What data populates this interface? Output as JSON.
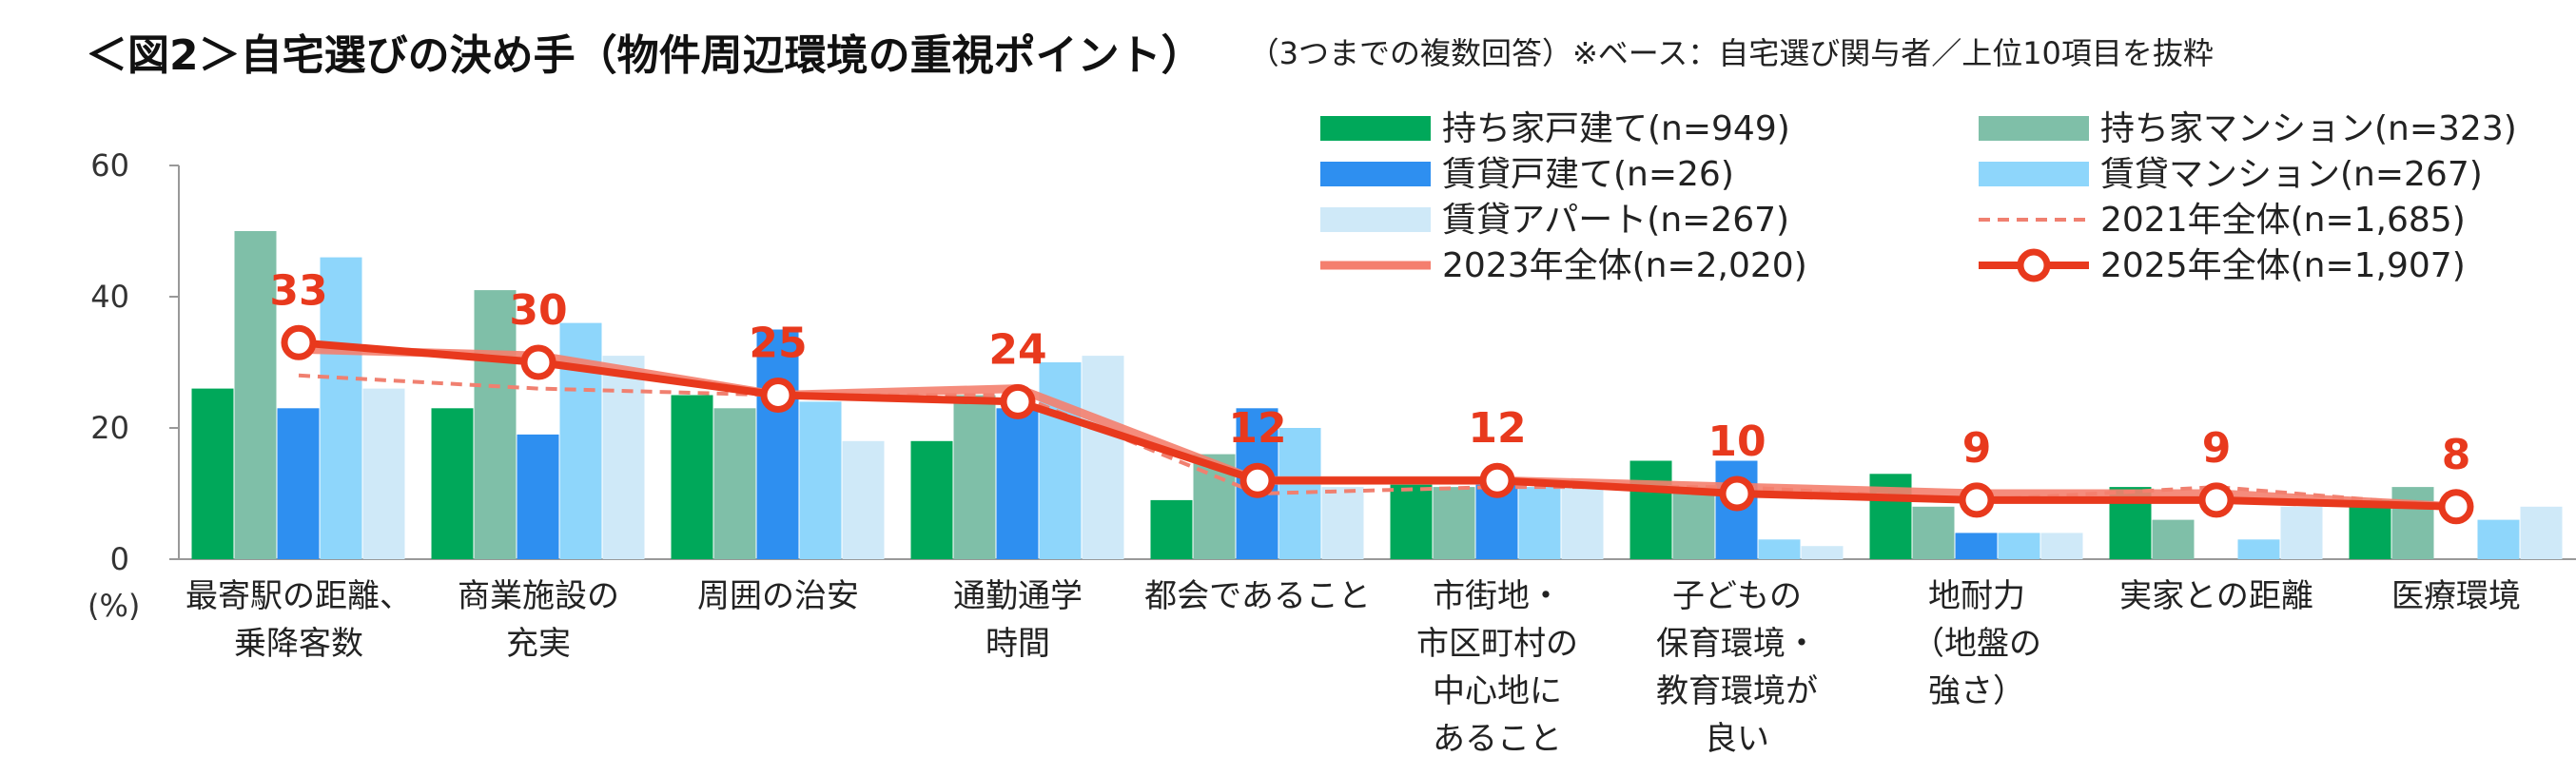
{
  "title": "＜図2＞自宅選びの決め手（物件周辺環境の重視ポイント）",
  "note": "（3つまでの複数回答）※ベース：自宅選び関与者／上位10項目を抜粋",
  "chart_data": {
    "type": "bar",
    "y_unit_label": "(%)",
    "ylim": [
      0,
      60
    ],
    "yticks": [
      0,
      20,
      40,
      60
    ],
    "categories": [
      "最寄駅の距離、\n乗降客数",
      "商業施設の\n充実",
      "周囲の治安",
      "通勤通学\n時間",
      "都会であること",
      "市街地・\n市区町村の\n中心地に\nあること",
      "子どもの\n保育環境・\n教育環境が\n良い",
      "地耐力\n（地盤の\n強さ）",
      "実家との距離",
      "医療環境"
    ],
    "bar_series": [
      {
        "name": "持ち家戸建て(n=949)",
        "color": "#00A85A",
        "values": [
          26,
          23,
          25,
          18,
          9,
          12,
          15,
          13,
          11,
          9
        ]
      },
      {
        "name": "持ち家マンション(n=323)",
        "color": "#7FBFA8",
        "values": [
          50,
          41,
          23,
          25,
          16,
          11,
          11,
          8,
          6,
          11
        ]
      },
      {
        "name": "賃貸戸建て(n=26)",
        "color": "#2E8FF0",
        "values": [
          23,
          19,
          35,
          23,
          23,
          12,
          15,
          4,
          0,
          0
        ]
      },
      {
        "name": "賃貸マンション(n=267)",
        "color": "#8ED6FB",
        "values": [
          46,
          36,
          24,
          30,
          20,
          11,
          3,
          4,
          3,
          6
        ]
      },
      {
        "name": "賃貸アパート(n=267)",
        "color": "#CFE9F8",
        "values": [
          26,
          31,
          18,
          31,
          11,
          11,
          2,
          4,
          8,
          8
        ]
      }
    ],
    "line_series": [
      {
        "name": "2021年全体(n=1,685)",
        "color": "#F08070",
        "style": "dashed",
        "values": [
          28,
          26,
          25,
          25,
          10,
          11,
          11,
          9,
          11,
          8
        ]
      },
      {
        "name": "2023年全体(n=2,020)",
        "color": "#F47F6E",
        "style": "solid-thick",
        "values": [
          32,
          31,
          25,
          26,
          12,
          12,
          11,
          10,
          10,
          8
        ]
      },
      {
        "name": "2025年全体(n=1,907)",
        "color": "#E8391D",
        "style": "solid-markers",
        "values": [
          33,
          30,
          25,
          24,
          12,
          12,
          10,
          9,
          9,
          8
        ]
      }
    ],
    "data_labels": [
      "33",
      "30",
      "25",
      "24",
      "12",
      "12",
      "10",
      "9",
      "9",
      "8"
    ],
    "grid": false,
    "legend_position": "top-right"
  }
}
